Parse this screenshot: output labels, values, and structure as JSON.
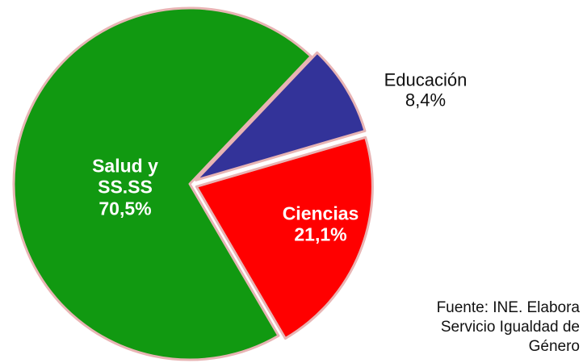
{
  "chart_data": {
    "type": "pie",
    "categories": [
      "Educación",
      "Ciencias",
      "Salud y SS.SS"
    ],
    "values": [
      8.4,
      21.1,
      70.5
    ],
    "value_labels": [
      "8,4%",
      "21,1%",
      "70,5%"
    ],
    "colors": [
      "#333399",
      "#ff0000",
      "#119911"
    ],
    "note": "Fuente: INE. Elabora Servicio Igualdad de Género"
  }
}
